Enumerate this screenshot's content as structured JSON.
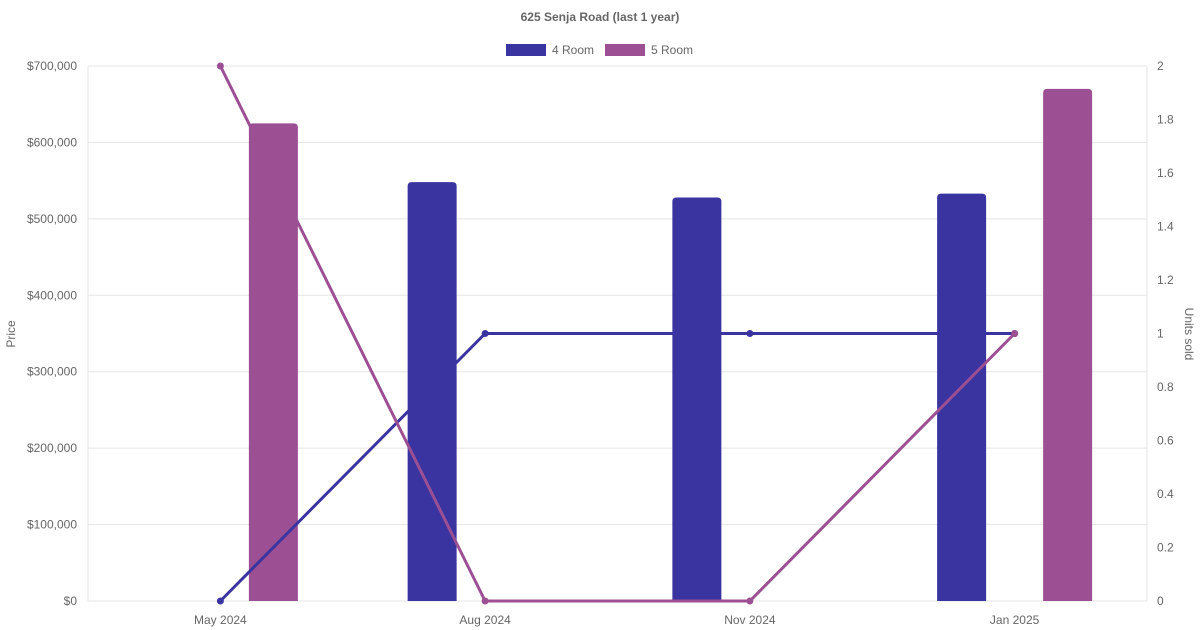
{
  "chart_data": {
    "type": "bar",
    "title": "625 Senja Road (last 1 year)",
    "categories": [
      "May 2024",
      "Aug 2024",
      "Nov 2024",
      "Jan 2025"
    ],
    "ylabel": "Price",
    "y2label": "Units sold",
    "ylim": [
      0,
      700000
    ],
    "y2lim": [
      0,
      2
    ],
    "yticks": [
      "$0",
      "$100,000",
      "$200,000",
      "$300,000",
      "$400,000",
      "$500,000",
      "$600,000",
      "$700,000"
    ],
    "y2ticks": [
      "0",
      "0.2",
      "0.4",
      "0.6",
      "0.8",
      "1",
      "1.2",
      "1.4",
      "1.6",
      "1.8",
      "2"
    ],
    "grid": true,
    "legend_position": "top",
    "series": [
      {
        "name": "4 Room",
        "color": "#3a34a0",
        "bar_values": [
          null,
          548000,
          528000,
          533000
        ],
        "units_sold": [
          0,
          1,
          1,
          1
        ]
      },
      {
        "name": "5 Room",
        "color": "#9c4f93",
        "bar_values": [
          625000,
          null,
          null,
          670000
        ],
        "units_sold": [
          2,
          0,
          0,
          1
        ]
      }
    ]
  }
}
